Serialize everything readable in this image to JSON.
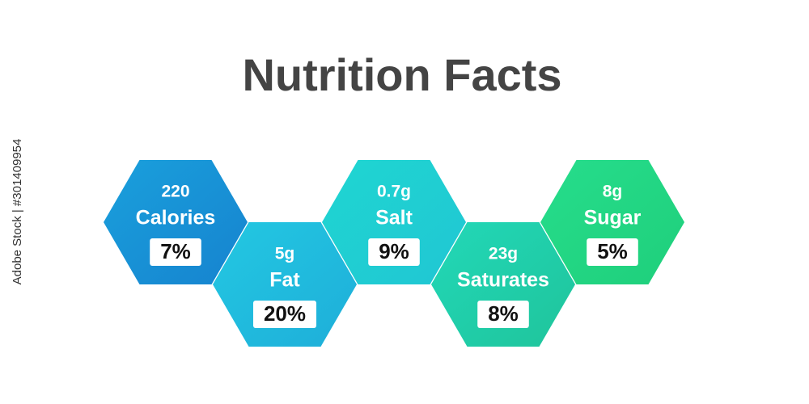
{
  "header": {
    "title": "Nutrition Facts"
  },
  "items": [
    {
      "amount": "220",
      "name": "Calories",
      "percent": "7%"
    },
    {
      "amount": "5g",
      "name": "Fat",
      "percent": "20%"
    },
    {
      "amount": "0.7g",
      "name": "Salt",
      "percent": "9%"
    },
    {
      "amount": "23g",
      "name": "Saturates",
      "percent": "8%"
    },
    {
      "amount": "8g",
      "name": "Sugar",
      "percent": "5%"
    }
  ],
  "watermark": "Adobe Stock | #301409954"
}
